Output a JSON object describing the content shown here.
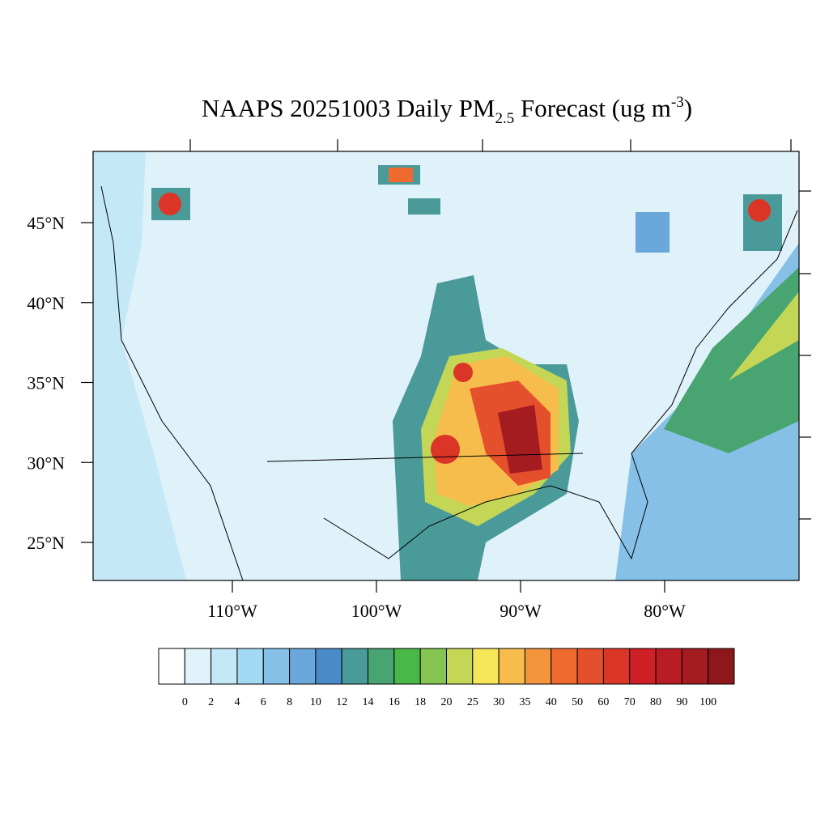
{
  "title": {
    "main": "NAAPS 20251003 Daily PM",
    "sub": "2.5",
    "rest": " Forecast (ug m",
    "sup": "-3",
    "end": ")"
  },
  "map": {
    "lat_labels": [
      {
        "value": 45,
        "label": "45°N"
      },
      {
        "value": 40,
        "label": "40°N"
      },
      {
        "value": 35,
        "label": "35°N"
      },
      {
        "value": 30,
        "label": "30°N"
      },
      {
        "value": 25,
        "label": "25°N"
      }
    ],
    "lon_labels": [
      {
        "value": -110,
        "label": "110°W"
      },
      {
        "value": -100,
        "label": "100°W"
      },
      {
        "value": -90,
        "label": "90°W"
      },
      {
        "value": -80,
        "label": "80°W"
      }
    ]
  },
  "colorbar": {
    "levels": [
      0,
      2,
      4,
      6,
      8,
      10,
      12,
      14,
      16,
      18,
      20,
      25,
      30,
      35,
      40,
      50,
      60,
      70,
      80,
      90,
      100
    ],
    "colors": [
      "#ffffff",
      "#e0f3fa",
      "#c5e8f7",
      "#a2d9f3",
      "#86c0e6",
      "#6aa8db",
      "#4a8ac9",
      "#4a9a9a",
      "#48a470",
      "#4ab848",
      "#85c451",
      "#c3d655",
      "#f5e65a",
      "#f6bd4c",
      "#f4953e",
      "#ef6a2f",
      "#e5502c",
      "#db3527",
      "#cf1f27",
      "#b81c24",
      "#a51c20",
      "#8e171b"
    ]
  }
}
